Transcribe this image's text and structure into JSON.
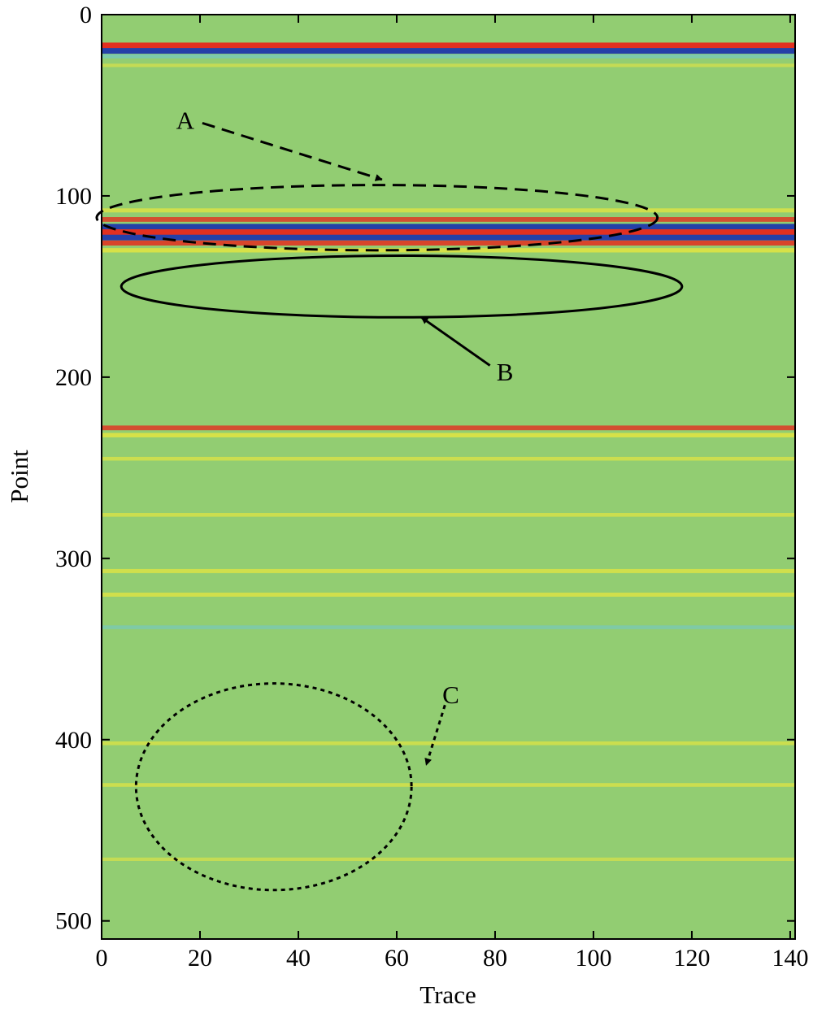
{
  "chart_data": {
    "type": "heatmap",
    "title": "",
    "xlabel": "Trace",
    "ylabel": "Point",
    "xlim": [
      0,
      141
    ],
    "ylim": [
      0,
      510
    ],
    "y_inverted": true,
    "x_ticks": [
      0,
      20,
      40,
      60,
      80,
      100,
      120,
      140
    ],
    "x_tick_labels": [
      "0",
      "20",
      "40",
      "60",
      "80",
      "100",
      "120",
      "140"
    ],
    "y_ticks": [
      0,
      100,
      200,
      300,
      400,
      500
    ],
    "y_tick_labels": [
      "0",
      "100",
      "200",
      "300",
      "400",
      "500"
    ],
    "colormap": {
      "background": "#92cd72",
      "low": "#2540a8",
      "mid_low": "#72c8c8",
      "mid_high": "#eee83a",
      "high": "#e23020"
    },
    "bands": [
      {
        "point": 17,
        "kind": "red",
        "strength": 1.0
      },
      {
        "point": 20,
        "kind": "blue",
        "strength": 1.0
      },
      {
        "point": 23,
        "kind": "cyan",
        "strength": 0.5
      },
      {
        "point": 28,
        "kind": "yellow",
        "strength": 0.3
      },
      {
        "point": 108,
        "kind": "yellow",
        "strength": 0.5
      },
      {
        "point": 113,
        "kind": "red",
        "strength": 0.7
      },
      {
        "point": 117,
        "kind": "blue",
        "strength": 1.0
      },
      {
        "point": 120,
        "kind": "red",
        "strength": 1.0
      },
      {
        "point": 123,
        "kind": "blue",
        "strength": 1.0
      },
      {
        "point": 126,
        "kind": "red",
        "strength": 0.8
      },
      {
        "point": 130,
        "kind": "yellow",
        "strength": 0.6
      },
      {
        "point": 228,
        "kind": "red",
        "strength": 0.7
      },
      {
        "point": 232,
        "kind": "yellow",
        "strength": 0.6
      },
      {
        "point": 245,
        "kind": "yellow",
        "strength": 0.4
      },
      {
        "point": 276,
        "kind": "yellow",
        "strength": 0.4
      },
      {
        "point": 307,
        "kind": "yellow",
        "strength": 0.5
      },
      {
        "point": 320,
        "kind": "yellow",
        "strength": 0.5
      },
      {
        "point": 338,
        "kind": "cyan",
        "strength": 0.4
      },
      {
        "point": 402,
        "kind": "yellow",
        "strength": 0.4
      },
      {
        "point": 425,
        "kind": "yellow",
        "strength": 0.4
      },
      {
        "point": 466,
        "kind": "yellow",
        "strength": 0.3
      }
    ],
    "annotations": [
      {
        "label": "A",
        "style": "dashed",
        "center": [
          56,
          112
        ],
        "radii": [
          57,
          18
        ],
        "text_at": [
          17,
          58
        ],
        "arrow_to": [
          57,
          91
        ]
      },
      {
        "label": "B",
        "style": "solid",
        "center": [
          61,
          150
        ],
        "radii": [
          57,
          17
        ],
        "text_at": [
          82,
          197
        ],
        "arrow_to": [
          65,
          167
        ]
      },
      {
        "label": "C",
        "style": "dotted",
        "center": [
          35,
          426
        ],
        "radii": [
          28,
          57
        ],
        "text_at": [
          71,
          375
        ],
        "arrow_to": [
          66,
          414
        ]
      }
    ]
  }
}
